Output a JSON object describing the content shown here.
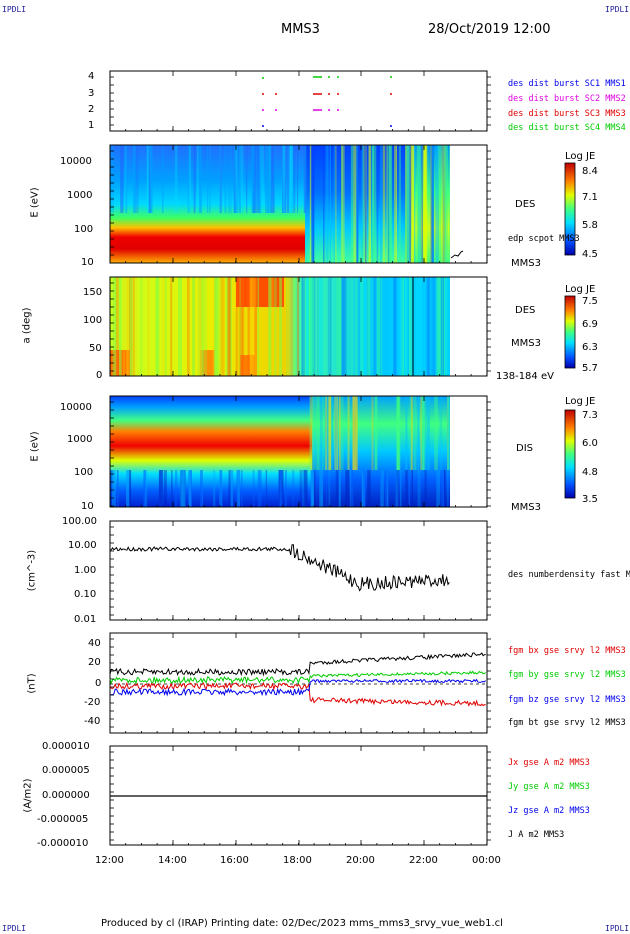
{
  "corner_label": "IPDLI",
  "header": {
    "spacecraft": "MMS3",
    "datetime": "28/Oct/2019 12:00"
  },
  "footer": "Produced by cl (IRAP)   Printing date: 02/Dec/2023   mms_mms3_srvy_vue_web1.cl",
  "time_axis": {
    "ticks": [
      "12:00",
      "14:00",
      "16:00",
      "18:00",
      "20:00",
      "22:00",
      "00:00"
    ]
  },
  "colors": {
    "red": "#e00000",
    "green": "#00cc00",
    "blue": "#0000ee",
    "magenta": "#e000e0",
    "black": "#000000"
  },
  "chart_data": [
    {
      "type": "scatter",
      "panel": "burst",
      "yticks": [
        "4",
        "3",
        "2",
        "1"
      ],
      "legend": [
        {
          "text": "des dist burst SC1 MMS1",
          "color": "#0000ee"
        },
        {
          "text": "des dist burst SC2 MMS2",
          "color": "#e000e0"
        },
        {
          "text": "des dist burst SC3 MMS3",
          "color": "#e00000"
        },
        {
          "text": "des dist burst SC4 MMS4",
          "color": "#00cc00"
        }
      ]
    },
    {
      "type": "heatmap",
      "panel": "des_energy",
      "ylabel": "E (eV)",
      "yscale": "log",
      "yticks": [
        "10000",
        "1000",
        "100",
        "10"
      ],
      "side_labels": [
        "DES",
        "edp scpot MMS3",
        "MMS3"
      ],
      "colorbar": {
        "title": "Log JE",
        "ticks": [
          "8.4",
          "7.1",
          "5.8",
          "4.5"
        ]
      }
    },
    {
      "type": "heatmap",
      "panel": "des_pitch",
      "ylabel": "a (deg)",
      "yticks": [
        "150",
        "100",
        "50",
        "0"
      ],
      "side_labels": [
        "DES",
        "MMS3",
        "138-184 eV"
      ],
      "colorbar": {
        "title": "Log JE",
        "ticks": [
          "7.5",
          "6.9",
          "6.3",
          "5.7"
        ]
      }
    },
    {
      "type": "heatmap",
      "panel": "dis_energy",
      "ylabel": "E (eV)",
      "yscale": "log",
      "yticks": [
        "10000",
        "1000",
        "100",
        "10"
      ],
      "side_labels": [
        "DIS",
        "MMS3"
      ],
      "colorbar": {
        "title": "Log JE",
        "ticks": [
          "7.3",
          "6.0",
          "4.8",
          "3.5"
        ]
      }
    },
    {
      "type": "line",
      "panel": "density",
      "ylabel": "(cm^-3)",
      "yscale": "log",
      "yticks": [
        "100.00",
        "10.00",
        "1.00",
        "0.10",
        "0.01"
      ],
      "series": [
        {
          "name": "des numberdensity fast M",
          "color": "#000000"
        }
      ]
    },
    {
      "type": "line",
      "panel": "magnetic_field",
      "ylabel": "(nT)",
      "yticks": [
        "40",
        "20",
        "0",
        "-20",
        "-40"
      ],
      "series": [
        {
          "name": "fgm bx gse srvy l2 MMS3",
          "color": "#e00000"
        },
        {
          "name": "fgm by gse srvy l2 MMS3",
          "color": "#00cc00"
        },
        {
          "name": "fgm bz gse srvy l2 MMS3",
          "color": "#0000ee"
        },
        {
          "name": "fgm bt gse srvy l2 MMS3",
          "color": "#000000"
        }
      ]
    },
    {
      "type": "line",
      "panel": "current_density",
      "ylabel": "(A/m2)",
      "yticks": [
        "0.000010",
        "0.000005",
        "0.000000",
        "-0.000005",
        "-0.000010"
      ],
      "series": [
        {
          "name": "Jx gse A m2 MMS3",
          "color": "#e00000"
        },
        {
          "name": "Jy gse A m2 MMS3",
          "color": "#00cc00"
        },
        {
          "name": "Jz gse A m2 MMS3",
          "color": "#0000ee"
        },
        {
          "name": "J A m2 MMS3",
          "color": "#000000"
        }
      ]
    }
  ]
}
